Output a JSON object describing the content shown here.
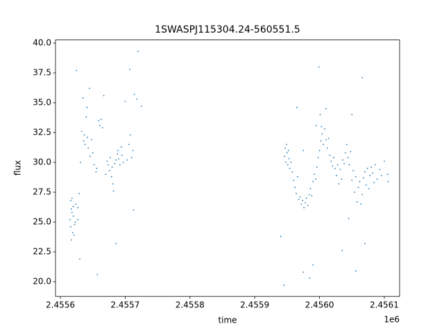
{
  "chart_data": {
    "type": "scatter",
    "title": "1SWASPJ115304.24-560551.5",
    "x_label": "time",
    "y_label": "flux",
    "x_offset_label": "1e6",
    "color": "#1f77b4",
    "grid": false,
    "xlim": [
      2455592.5,
      2456123.6
    ],
    "ylim": [
      18.77,
      40.26
    ],
    "xticks": [
      {
        "value": 2455600,
        "label": "2.4556"
      },
      {
        "value": 2455700,
        "label": "2.4557"
      },
      {
        "value": 2455800,
        "label": "2.4558"
      },
      {
        "value": 2455900,
        "label": "2.4559"
      },
      {
        "value": 2456000,
        "label": "2.4560"
      },
      {
        "value": 2456100,
        "label": "2.4561"
      }
    ],
    "yticks": [
      {
        "value": 20,
        "label": "20.0"
      },
      22.5,
      {
        "value": 25,
        "label": "25.0"
      },
      27.5,
      {
        "value": 30,
        "label": "30.0"
      },
      32.5,
      {
        "value": 35,
        "label": "35.0"
      },
      37.5,
      {
        "value": 40,
        "label": "40.0"
      }
    ],
    "x": [
      2455615,
      2455616,
      2455617,
      2455618,
      2455619,
      2455620,
      2455621,
      2455622,
      2455616,
      2455618,
      2455620,
      2455623,
      2455617,
      2455624,
      2455627,
      2455629,
      2455631,
      2455633,
      2455635,
      2455636,
      2455637,
      2455638,
      2455640,
      2455641,
      2455642,
      2455643,
      2455645,
      2455646,
      2455648,
      2455650,
      2455652,
      2455655,
      2455656,
      2455659,
      2455661,
      2455663,
      2455665,
      2455667,
      2455670,
      2455672,
      2455674,
      2455676,
      2455677,
      2455679,
      2455680,
      2455681,
      2455682,
      2455684,
      2455686,
      2455688,
      2455689,
      2455690,
      2455692,
      2455694,
      2455695,
      2455697,
      2455700,
      2455703,
      2455706,
      2455708,
      2455710,
      2455712,
      2455714,
      2455718,
      2455720,
      2455725,
      2455707,
      2455625,
      2455630,
      2455627,
      2455657,
      2455686,
      2455713,
      2455946,
      2455947,
      2455948,
      2455949,
      2455950,
      2455951,
      2455952,
      2455953,
      2455954,
      2455956,
      2455958,
      2455960,
      2455962,
      2455964,
      2455966,
      2455968,
      2455970,
      2455972,
      2455974,
      2455976,
      2455978,
      2455980,
      2455982,
      2455984,
      2455986,
      2455988,
      2455990,
      2455992,
      2455994,
      2455996,
      2455998,
      2456000,
      2456002,
      2456004,
      2456006,
      2456008,
      2456010,
      2456012,
      2456014,
      2456016,
      2456018,
      2456020,
      2456022,
      2456024,
      2456026,
      2456028,
      2456030,
      2456032,
      2456034,
      2456036,
      2456038,
      2456040,
      2456042,
      2456044,
      2456046,
      2456048,
      2456050,
      2456052,
      2456054,
      2456056,
      2456058,
      2456060,
      2456062,
      2456064,
      2456066,
      2456068,
      2456070,
      2456072,
      2456074,
      2456076,
      2456078,
      2456080,
      2456082,
      2456084,
      2456086,
      2456089,
      2456093,
      2456096,
      2456100,
      2456105,
      2456106,
      2456003,
      2456001,
      2456010,
      2456050,
      2455965,
      2455975,
      2455995,
      2455940,
      2455985,
      2455990,
      2456035,
      2456045,
      2456070,
      2456056,
      2455999,
      2456066,
      2455945,
      2455975
    ],
    "values": [
      25.2,
      24.6,
      26.1,
      25.8,
      24.1,
      25.5,
      23.9,
      24.8,
      26.8,
      27.0,
      26.3,
      25.0,
      23.5,
      26.5,
      26.2,
      27.4,
      30.0,
      32.6,
      35.4,
      31.8,
      32.3,
      31.5,
      33.8,
      34.6,
      32.1,
      31.2,
      36.2,
      30.5,
      31.9,
      30.8,
      29.8,
      29.2,
      29.5,
      33.5,
      33.1,
      33.6,
      32.9,
      35.6,
      29.0,
      30.1,
      29.8,
      29.3,
      30.4,
      28.8,
      29.6,
      28.2,
      27.6,
      29.9,
      30.2,
      30.7,
      31.0,
      30.3,
      29.8,
      31.3,
      30.6,
      30.0,
      35.1,
      30.2,
      31.5,
      32.3,
      30.4,
      31.0,
      35.7,
      35.3,
      39.3,
      34.7,
      37.8,
      37.7,
      21.9,
      25.2,
      20.6,
      23.2,
      26.0,
      30.5,
      31.2,
      30.0,
      31.5,
      30.8,
      29.8,
      31.0,
      30.3,
      29.5,
      30.0,
      29.2,
      28.5,
      27.9,
      27.4,
      28.8,
      26.9,
      27.1,
      26.5,
      26.8,
      26.2,
      26.6,
      27.0,
      26.4,
      27.3,
      27.8,
      27.2,
      28.4,
      29.0,
      28.6,
      29.6,
      30.4,
      31.0,
      31.8,
      32.4,
      31.5,
      32.8,
      31.9,
      31.2,
      32.0,
      30.6,
      30.1,
      29.7,
      30.4,
      29.5,
      28.9,
      29.8,
      28.2,
      29.4,
      28.6,
      30.2,
      29.9,
      30.8,
      31.5,
      30.4,
      29.8,
      30.9,
      28.5,
      29.3,
      27.5,
      28.8,
      26.7,
      27.9,
      28.4,
      26.5,
      27.3,
      28.7,
      29.2,
      28.1,
      29.5,
      27.8,
      28.9,
      29.6,
      29.1,
      28.3,
      29.8,
      28.6,
      29.4,
      28.9,
      30.1,
      29.0,
      28.4,
      33.0,
      34.0,
      34.5,
      34.0,
      34.6,
      31.0,
      33.1,
      23.8,
      20.3,
      21.4,
      22.6,
      25.3,
      23.2,
      20.9,
      38.0,
      37.1,
      19.7,
      20.8
    ]
  }
}
